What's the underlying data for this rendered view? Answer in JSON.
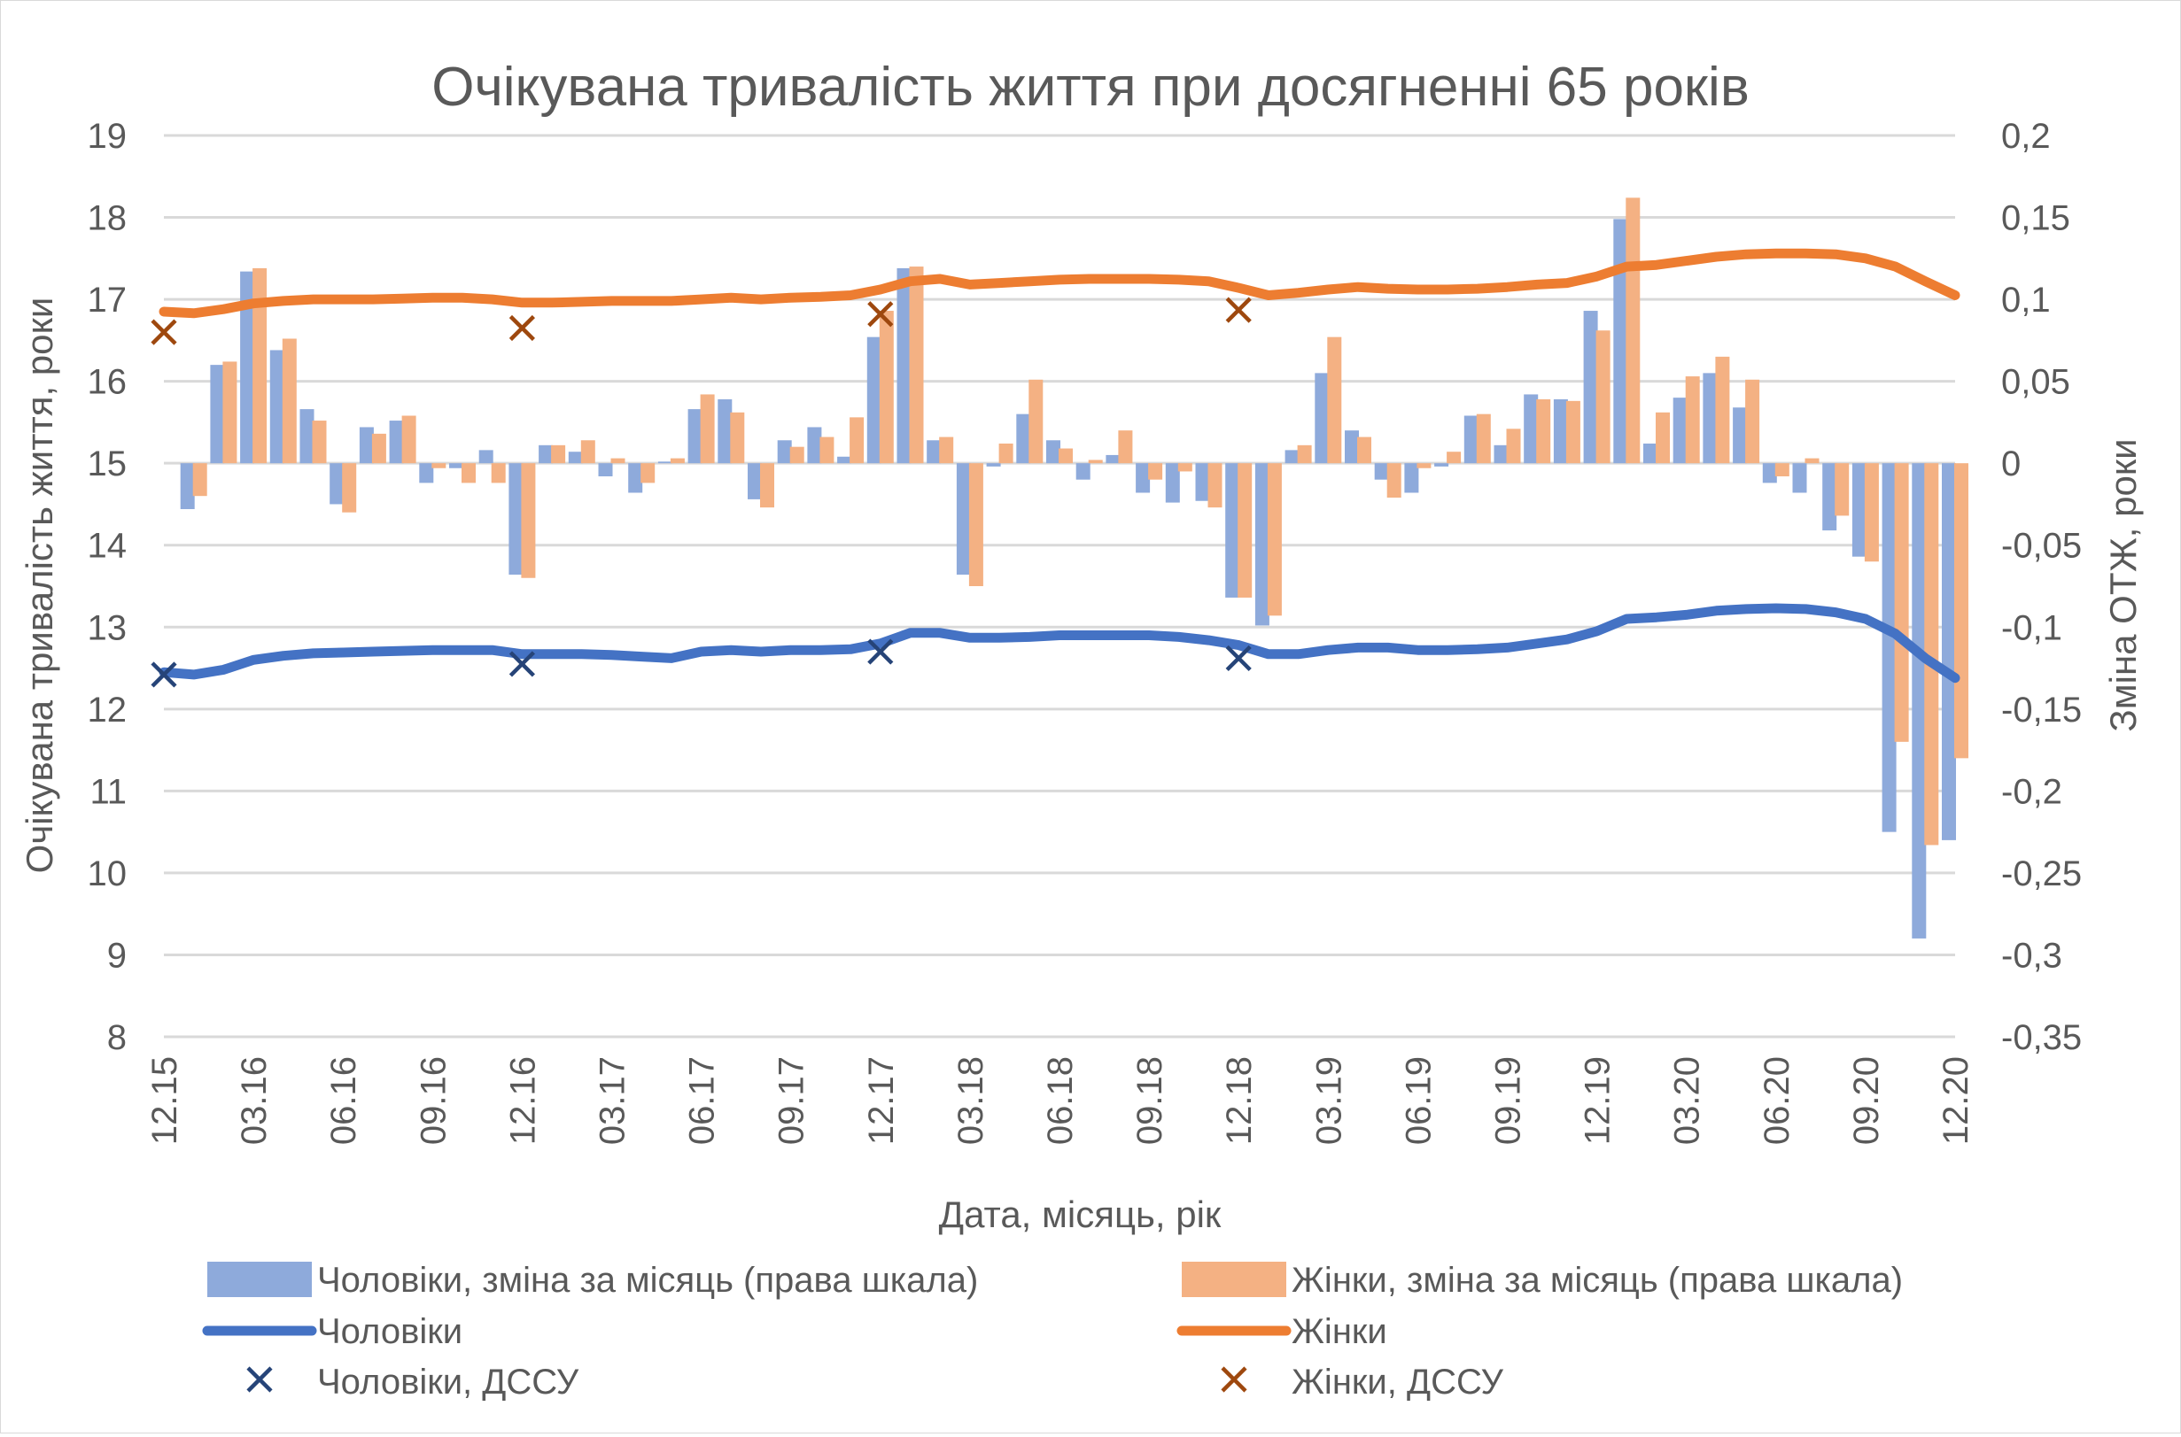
{
  "chart_data": {
    "type": "bar+line",
    "title": "Очікувана тривалість життя при досягненні 65 років",
    "xlabel": "Дата, місяць, рік",
    "ylabel": "Очікувана тривалість життя, роки",
    "ylabel_right": "Зміна ОТЖ, роки",
    "ylim": [
      8,
      19
    ],
    "ylim_right": [
      -0.35,
      0.2
    ],
    "grid": true,
    "legend_position": "bottom",
    "y_ticks": [
      "8",
      "9",
      "10",
      "11",
      "12",
      "13",
      "14",
      "15",
      "16",
      "17",
      "18",
      "19"
    ],
    "y_ticks_right": [
      "-0,35",
      "-0,3",
      "-0,25",
      "-0,2",
      "-0,15",
      "-0,1",
      "-0,05",
      "0",
      "0,05",
      "0,1",
      "0,15",
      "0,2"
    ],
    "x_tick_labels": [
      "12.15",
      "03.16",
      "06.16",
      "09.16",
      "12.16",
      "03.17",
      "06.17",
      "09.17",
      "12.17",
      "03.18",
      "06.18",
      "09.18",
      "12.18",
      "03.19",
      "06.19",
      "09.19",
      "12.19",
      "03.20",
      "06.20",
      "09.20",
      "12.20"
    ],
    "months_count": 61,
    "series": [
      {
        "name": "Чоловіки, зміна за місяць (права шкала)",
        "type": "bar",
        "axis": "right",
        "color": "#8eaadb",
        "values": [
          null,
          -0.028,
          0.06,
          0.117,
          0.069,
          0.033,
          -0.025,
          0.022,
          0.026,
          -0.012,
          -0.003,
          0.008,
          -0.068,
          0.011,
          0.007,
          -0.008,
          -0.018,
          0.001,
          0.033,
          0.039,
          -0.022,
          0.014,
          0.022,
          0.004,
          0.077,
          0.119,
          0.014,
          -0.068,
          -0.002,
          0.03,
          0.014,
          -0.01,
          0.005,
          -0.018,
          -0.024,
          -0.023,
          -0.082,
          -0.099,
          0.008,
          0.055,
          0.02,
          -0.01,
          -0.018,
          -0.002,
          0.029,
          0.011,
          0.042,
          0.039,
          0.093,
          0.149,
          0.012,
          0.04,
          0.055,
          0.034,
          -0.012,
          -0.018,
          -0.041,
          -0.057,
          -0.225,
          -0.29,
          -0.23
        ]
      },
      {
        "name": "Жінки, зміна за місяць (права шкала)",
        "type": "bar",
        "axis": "right",
        "color": "#f4b183",
        "values": [
          null,
          -0.02,
          0.062,
          0.119,
          0.076,
          0.026,
          -0.03,
          0.018,
          0.029,
          -0.003,
          -0.012,
          -0.012,
          -0.07,
          0.011,
          0.014,
          0.003,
          -0.012,
          0.003,
          0.042,
          0.031,
          -0.027,
          0.01,
          0.016,
          0.028,
          0.093,
          0.12,
          0.016,
          -0.075,
          0.012,
          0.051,
          0.009,
          0.002,
          0.02,
          -0.01,
          -0.005,
          -0.027,
          -0.082,
          -0.093,
          0.011,
          0.077,
          0.016,
          -0.021,
          -0.003,
          0.007,
          0.03,
          0.021,
          0.039,
          0.038,
          0.081,
          0.162,
          0.031,
          0.053,
          0.065,
          0.051,
          -0.008,
          0.003,
          -0.032,
          -0.06,
          -0.17,
          -0.233,
          -0.18
        ]
      },
      {
        "name": "Чоловіки",
        "type": "line",
        "axis": "left",
        "color": "#4472c4",
        "values": [
          12.45,
          12.42,
          12.48,
          12.6,
          12.65,
          12.68,
          12.69,
          12.7,
          12.71,
          12.72,
          12.72,
          12.72,
          12.67,
          12.67,
          12.67,
          12.66,
          12.64,
          12.62,
          12.7,
          12.72,
          12.7,
          12.72,
          12.72,
          12.73,
          12.8,
          12.93,
          12.93,
          12.87,
          12.87,
          12.88,
          12.9,
          12.9,
          12.9,
          12.9,
          12.88,
          12.84,
          12.78,
          12.67,
          12.67,
          12.72,
          12.75,
          12.75,
          12.72,
          12.72,
          12.73,
          12.75,
          12.8,
          12.85,
          12.95,
          13.1,
          13.12,
          13.15,
          13.2,
          13.22,
          13.23,
          13.22,
          13.18,
          13.1,
          12.92,
          12.62,
          12.38
        ]
      },
      {
        "name": "Жінки",
        "type": "line",
        "axis": "left",
        "color": "#ed7d31",
        "values": [
          16.85,
          16.83,
          16.88,
          16.95,
          16.98,
          17.0,
          17.0,
          17.0,
          17.01,
          17.02,
          17.02,
          17.0,
          16.96,
          16.96,
          16.97,
          16.98,
          16.98,
          16.98,
          17.0,
          17.02,
          17.0,
          17.02,
          17.03,
          17.05,
          17.12,
          17.22,
          17.25,
          17.18,
          17.2,
          17.22,
          17.24,
          17.25,
          17.25,
          17.25,
          17.24,
          17.22,
          17.14,
          17.05,
          17.08,
          17.12,
          17.15,
          17.13,
          17.12,
          17.12,
          17.13,
          17.15,
          17.18,
          17.2,
          17.28,
          17.4,
          17.42,
          17.47,
          17.52,
          17.55,
          17.56,
          17.56,
          17.55,
          17.5,
          17.4,
          17.22,
          17.05
        ]
      },
      {
        "name": "Чоловіки, ДССУ",
        "type": "scatter",
        "axis": "left",
        "color": "#264478",
        "points": [
          {
            "month_index": 0,
            "value": 12.42
          },
          {
            "month_index": 12,
            "value": 12.55
          },
          {
            "month_index": 24,
            "value": 12.7
          },
          {
            "month_index": 36,
            "value": 12.62
          }
        ]
      },
      {
        "name": "Жінки, ДССУ",
        "type": "scatter",
        "axis": "left",
        "color": "#9e480e",
        "points": [
          {
            "month_index": 0,
            "value": 16.6
          },
          {
            "month_index": 12,
            "value": 16.65
          },
          {
            "month_index": 24,
            "value": 16.82
          },
          {
            "month_index": 36,
            "value": 16.87
          }
        ]
      }
    ]
  }
}
